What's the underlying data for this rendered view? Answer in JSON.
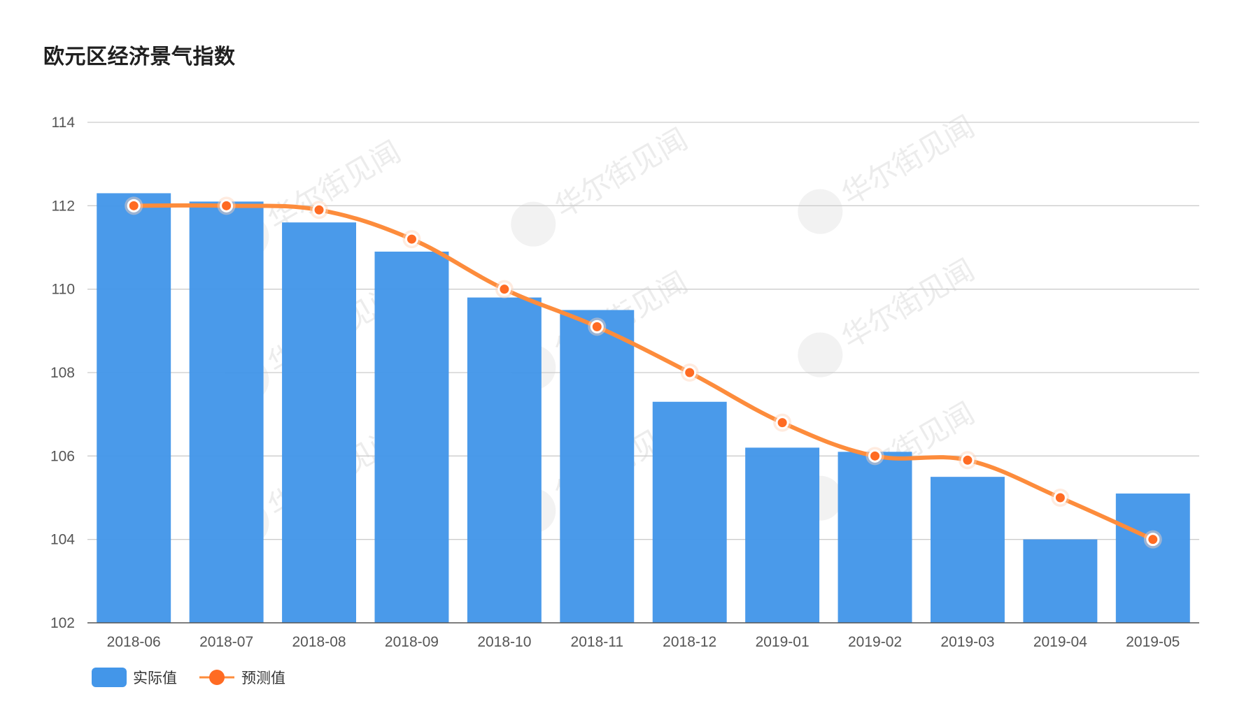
{
  "chart_data": {
    "type": "bar",
    "title": "欧元区经济景气指数",
    "xlabel": "",
    "ylabel": "",
    "categories": [
      "2018-06",
      "2018-07",
      "2018-08",
      "2018-09",
      "2018-10",
      "2018-11",
      "2018-12",
      "2019-01",
      "2019-02",
      "2019-03",
      "2019-04",
      "2019-05"
    ],
    "ylim": [
      102,
      114
    ],
    "yticks": [
      102,
      104,
      106,
      108,
      110,
      112,
      114
    ],
    "grid": true,
    "legend_position": "bottom-left",
    "series": [
      {
        "name": "实际值",
        "type": "bar",
        "color": "#4396e9",
        "values": [
          112.3,
          112.1,
          111.6,
          110.9,
          109.8,
          109.5,
          107.3,
          106.2,
          106.1,
          105.5,
          104.0,
          105.1
        ]
      },
      {
        "name": "预测值",
        "type": "line",
        "color": "#fd8c3c",
        "marker_color": "#ff6b23",
        "values": [
          112.0,
          112.0,
          111.9,
          111.2,
          110.0,
          109.1,
          108.0,
          106.8,
          106.0,
          105.9,
          105.0,
          104.0
        ]
      }
    ],
    "watermark": "华尔街见闻"
  }
}
